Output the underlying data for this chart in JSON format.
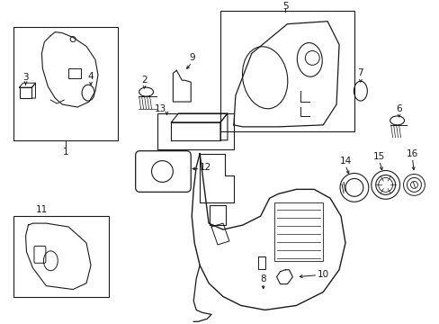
{
  "bg_color": "#ffffff",
  "line_color": "#1a1a1a",
  "fs": 7.5,
  "fig_w": 4.89,
  "fig_h": 3.6,
  "dpi": 100
}
